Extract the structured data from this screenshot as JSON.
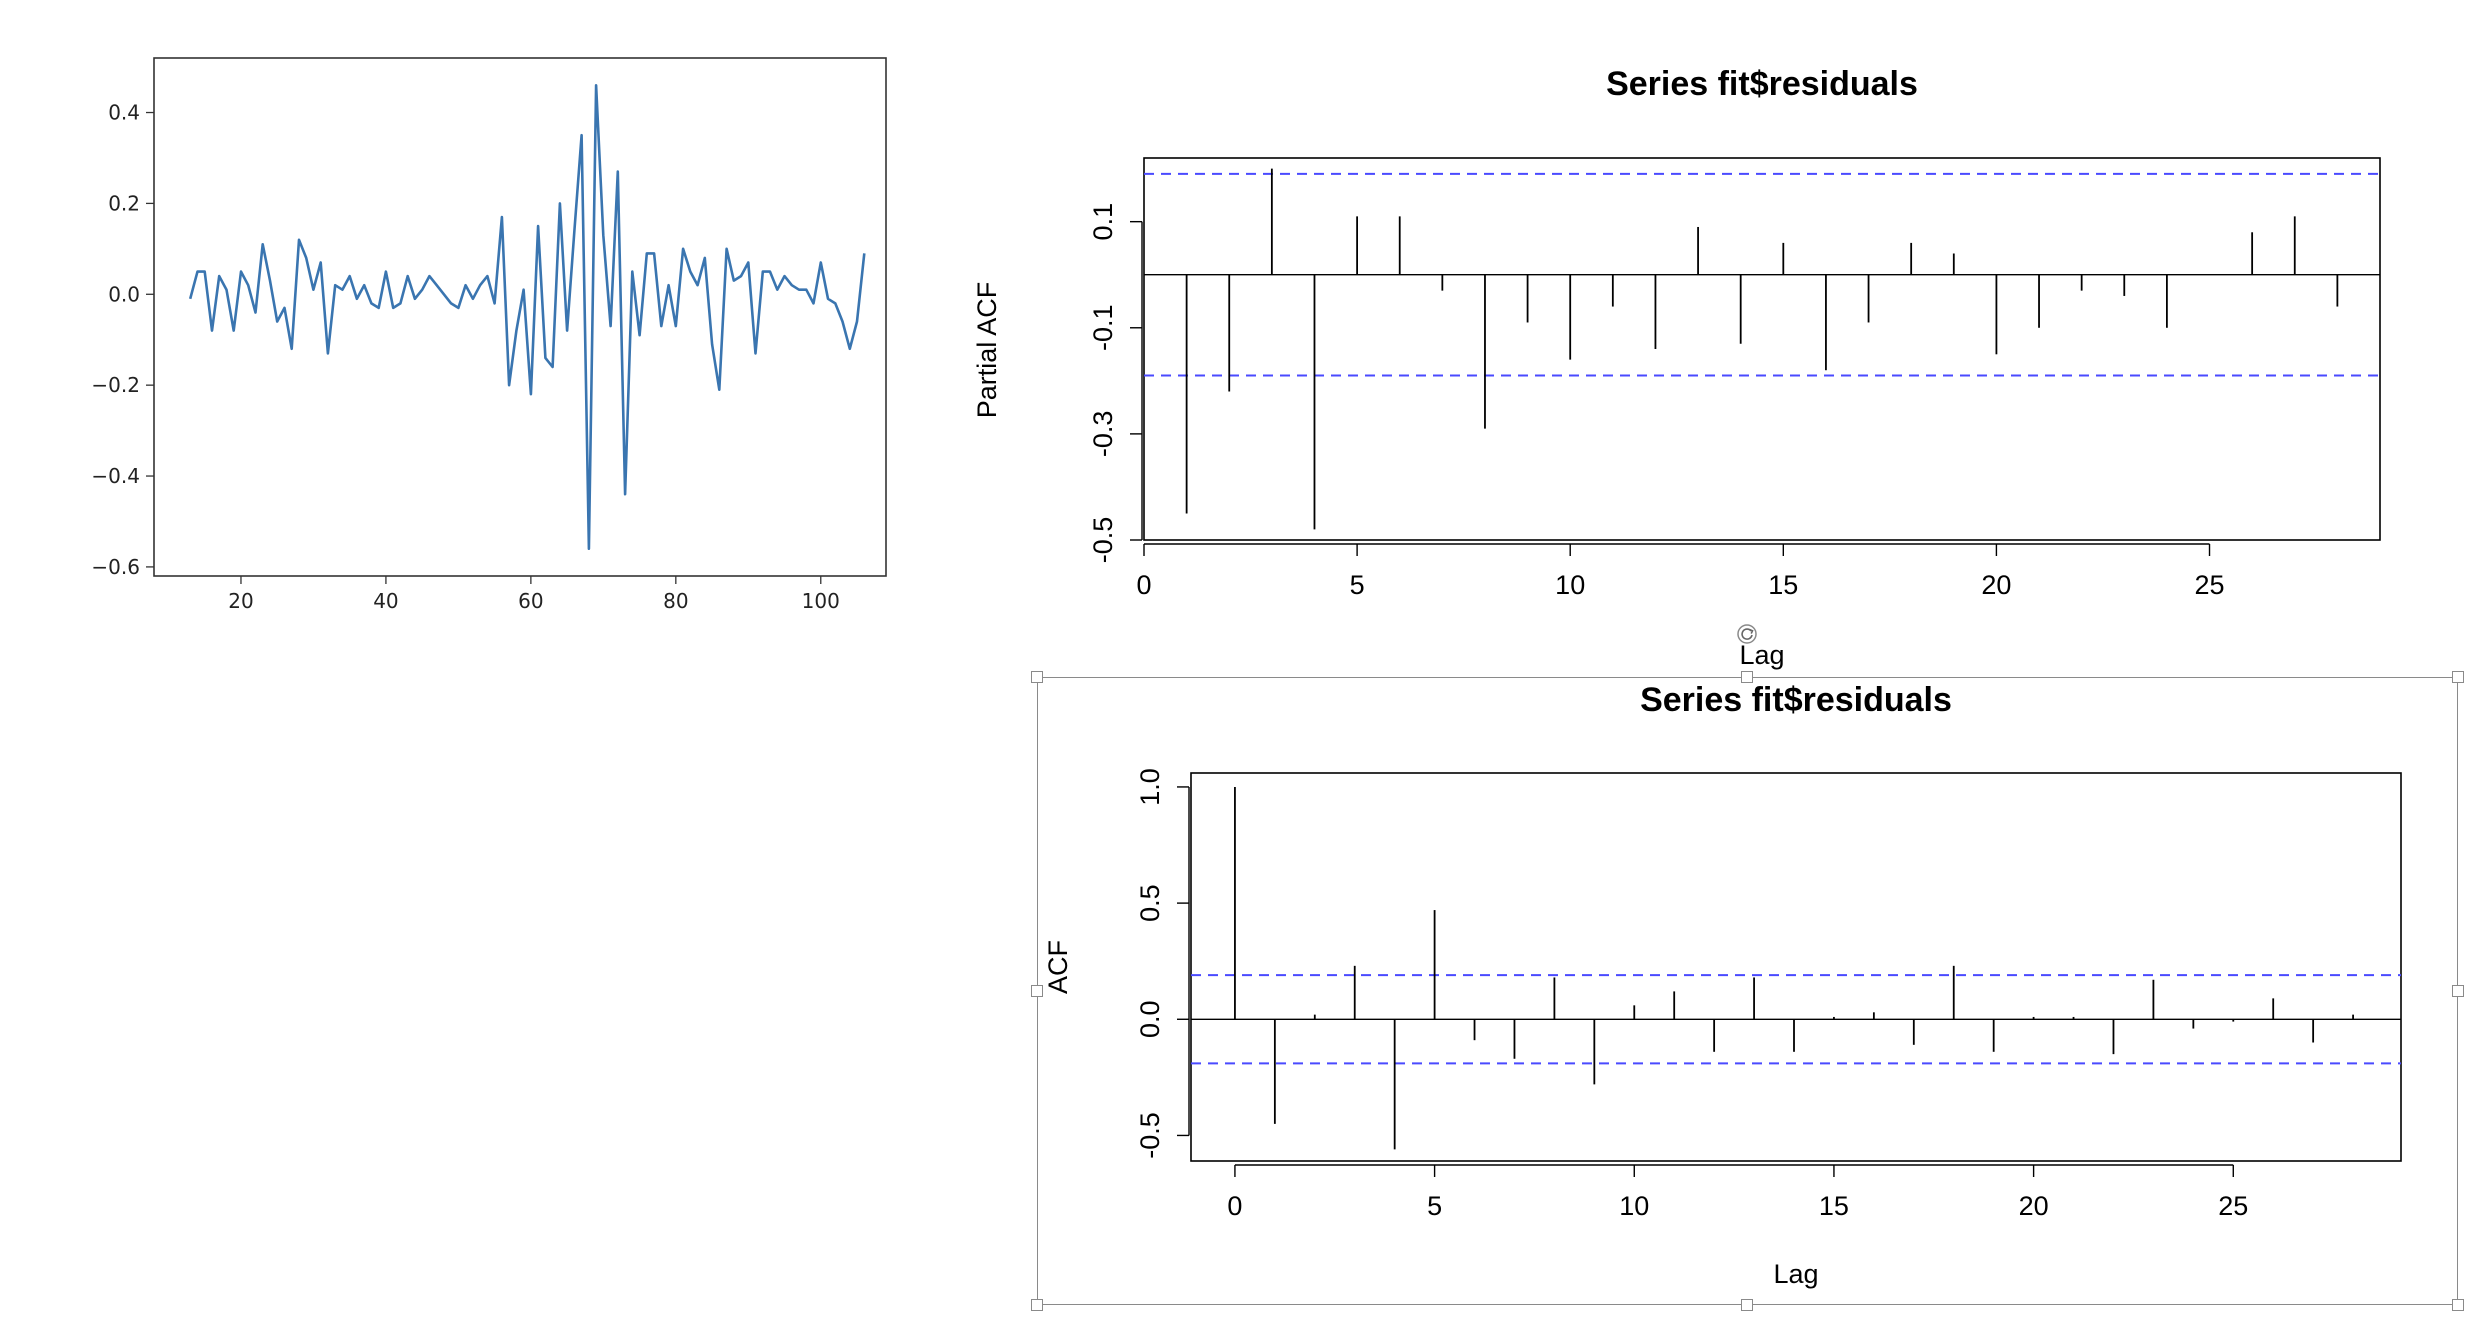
{
  "colors": {
    "line": "#3a75b0",
    "ci": "#4a4aff",
    "spike": "#000000",
    "frame": "#333333",
    "handle_border": "#8a8a8a"
  },
  "icons": {
    "rotate_handle": "rotate-icon"
  },
  "chart_data": [
    {
      "type": "line",
      "title": "",
      "xlabel": "",
      "ylabel": "",
      "xlim": [
        8,
        109
      ],
      "ylim": [
        -0.62,
        0.52
      ],
      "x_ticks": [
        20,
        40,
        60,
        80,
        100
      ],
      "x_tick_labels": [
        "20",
        "40",
        "60",
        "80",
        "100"
      ],
      "y_ticks": [
        0.4,
        0.2,
        0.0,
        -0.2,
        -0.4,
        -0.6
      ],
      "y_tick_labels": [
        "0.4",
        "0.2",
        "0.0",
        "−0.2",
        "−0.4",
        "−0.6"
      ],
      "grid": false,
      "x": [
        13,
        14,
        15,
        16,
        17,
        18,
        19,
        20,
        21,
        22,
        23,
        24,
        25,
        26,
        27,
        28,
        29,
        30,
        31,
        32,
        33,
        34,
        35,
        36,
        37,
        38,
        39,
        40,
        41,
        42,
        43,
        44,
        45,
        46,
        47,
        48,
        49,
        50,
        51,
        52,
        53,
        54,
        55,
        56,
        57,
        58,
        59,
        60,
        61,
        62,
        63,
        64,
        65,
        66,
        67,
        68,
        69,
        70,
        71,
        72,
        73,
        74,
        75,
        76,
        77,
        78,
        79,
        80,
        81,
        82,
        83,
        84,
        85,
        86,
        87,
        88,
        89,
        90,
        91,
        92,
        93,
        94,
        95,
        96,
        97,
        98,
        99,
        100,
        101,
        102,
        103,
        104,
        105,
        106
      ],
      "y": [
        -0.01,
        0.05,
        0.05,
        -0.08,
        0.04,
        0.01,
        -0.08,
        0.05,
        0.02,
        -0.04,
        0.11,
        0.03,
        -0.06,
        -0.03,
        -0.12,
        0.12,
        0.08,
        0.01,
        0.07,
        -0.13,
        0.02,
        0.01,
        0.04,
        -0.01,
        0.02,
        -0.02,
        -0.03,
        0.05,
        -0.03,
        -0.02,
        0.04,
        -0.01,
        0.01,
        0.04,
        0.02,
        0.0,
        -0.02,
        -0.03,
        0.02,
        -0.01,
        0.02,
        0.04,
        -0.02,
        0.17,
        -0.2,
        -0.08,
        0.01,
        -0.22,
        0.15,
        -0.14,
        -0.16,
        0.2,
        -0.08,
        0.14,
        0.35,
        -0.56,
        0.46,
        0.13,
        -0.07,
        0.27,
        -0.44,
        0.05,
        -0.09,
        0.09,
        0.09,
        -0.07,
        0.02,
        -0.07,
        0.1,
        0.05,
        0.02,
        0.08,
        -0.11,
        -0.21,
        0.1,
        0.03,
        0.04,
        0.07,
        -0.13,
        0.05,
        0.05,
        0.01,
        0.04,
        0.02,
        0.01,
        0.01,
        -0.02,
        0.07,
        -0.01,
        -0.02,
        -0.06,
        -0.12,
        -0.06,
        0.09
      ]
    },
    {
      "type": "bar",
      "title": "Series  fit$residuals",
      "xlabel": "Lag",
      "ylabel": "Partial ACF",
      "xlim": [
        0,
        29
      ],
      "ylim": [
        -0.5,
        0.22
      ],
      "x_ticks": [
        0,
        5,
        10,
        15,
        20,
        25
      ],
      "x_tick_labels": [
        "0",
        "5",
        "10",
        "15",
        "20",
        "25"
      ],
      "y_ticks": [
        0.1,
        -0.1,
        -0.3,
        -0.5
      ],
      "y_tick_labels": [
        "0.1",
        "-0.1",
        "-0.3",
        "-0.5"
      ],
      "ci": 0.19,
      "lags": [
        1,
        2,
        3,
        4,
        5,
        6,
        7,
        8,
        9,
        10,
        11,
        12,
        13,
        14,
        15,
        16,
        17,
        18,
        19,
        20,
        21,
        22,
        23,
        24,
        25,
        26,
        27,
        28
      ],
      "values": [
        -0.45,
        -0.22,
        0.2,
        -0.48,
        0.11,
        0.11,
        -0.03,
        -0.29,
        -0.09,
        -0.16,
        -0.06,
        -0.14,
        0.09,
        -0.13,
        0.06,
        -0.18,
        -0.09,
        0.06,
        0.04,
        -0.15,
        -0.1,
        -0.03,
        -0.04,
        -0.1,
        0.0,
        0.08,
        0.11,
        -0.06
      ]
    },
    {
      "type": "bar",
      "title": "Series  fit$residuals",
      "xlabel": "Lag",
      "ylabel": "ACF",
      "xlim": [
        -1.1,
        29.2
      ],
      "ylim": [
        -0.61,
        1.06
      ],
      "x_ticks": [
        0,
        5,
        10,
        15,
        20,
        25
      ],
      "x_tick_labels": [
        "0",
        "5",
        "10",
        "15",
        "20",
        "25"
      ],
      "y_ticks": [
        1.0,
        0.5,
        0.0,
        -0.5
      ],
      "y_tick_labels": [
        "1.0",
        "0.5",
        "0.0",
        "-0.5"
      ],
      "ci": 0.19,
      "lags": [
        0,
        1,
        2,
        3,
        4,
        5,
        6,
        7,
        8,
        9,
        10,
        11,
        12,
        13,
        14,
        15,
        16,
        17,
        18,
        19,
        20,
        21,
        22,
        23,
        24,
        25,
        26,
        27,
        28
      ],
      "values": [
        1.0,
        -0.45,
        0.02,
        0.23,
        -0.56,
        0.47,
        -0.09,
        -0.17,
        0.18,
        -0.28,
        0.06,
        0.12,
        -0.14,
        0.18,
        -0.14,
        0.01,
        0.03,
        -0.11,
        0.23,
        -0.14,
        0.01,
        0.01,
        -0.15,
        0.17,
        -0.04,
        -0.01,
        0.09,
        -0.1,
        0.02
      ]
    }
  ]
}
